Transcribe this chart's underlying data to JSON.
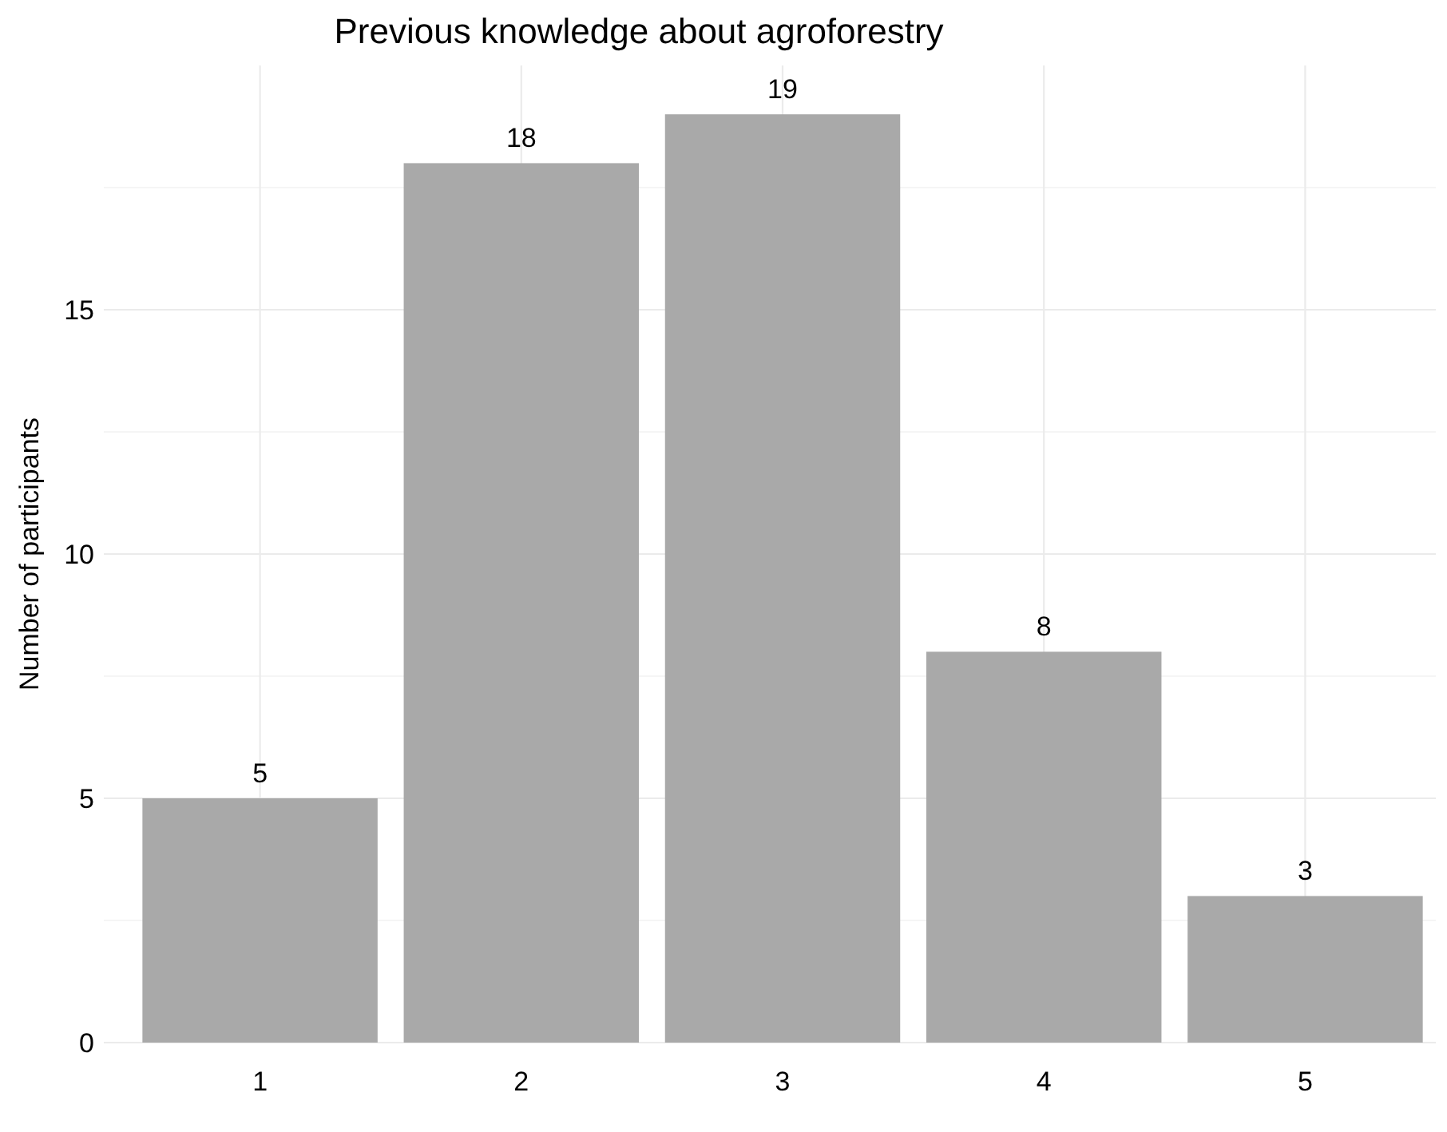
{
  "chart_data": {
    "type": "bar",
    "title": "Previous knowledge about agroforestry",
    "ylabel": "Number of participants",
    "categories": [
      "1",
      "2",
      "3",
      "4",
      "5"
    ],
    "values": [
      5,
      18,
      19,
      8,
      3
    ],
    "color": "#a9a9a9",
    "ylim": [
      0,
      20
    ],
    "yticks": [
      0,
      {
        "value": 2.5,
        "label": null
      },
      5,
      {
        "value": 7.5,
        "label": null
      },
      10,
      {
        "value": 12.5,
        "label": null
      },
      15,
      {
        "value": 17.5,
        "label": null
      }
    ],
    "grid": true,
    "data_labels": true
  }
}
